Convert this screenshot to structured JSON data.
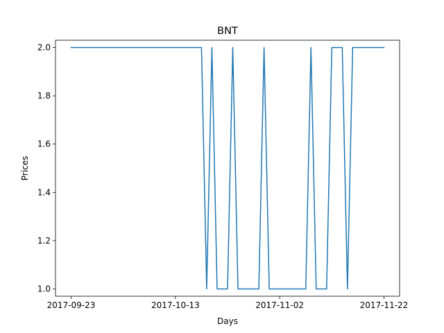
{
  "chart_data": {
    "type": "line",
    "title": "BNT",
    "xlabel": "Days",
    "ylabel": "Prices",
    "x_ticks": [
      "2017-09-23",
      "2017-10-13",
      "2017-11-02",
      "2017-11-22"
    ],
    "y_ticks": [
      "1.0",
      "1.2",
      "1.4",
      "1.6",
      "1.8",
      "2.0"
    ],
    "ylim": [
      0.97,
      2.03
    ],
    "xlim": [
      "2017-09-20",
      "2017-11-25"
    ],
    "grid": false,
    "series": [
      {
        "color": "#1f77b4",
        "x": [
          "2017-09-23",
          "2017-10-18",
          "2017-10-19",
          "2017-10-20",
          "2017-10-21",
          "2017-10-22",
          "2017-10-23",
          "2017-10-24",
          "2017-10-25",
          "2017-10-26",
          "2017-10-27",
          "2017-10-28",
          "2017-10-29",
          "2017-10-30",
          "2017-10-31",
          "2017-11-01",
          "2017-11-02",
          "2017-11-03",
          "2017-11-04",
          "2017-11-05",
          "2017-11-06",
          "2017-11-07",
          "2017-11-08",
          "2017-11-09",
          "2017-11-10",
          "2017-11-11",
          "2017-11-12",
          "2017-11-13",
          "2017-11-14",
          "2017-11-15",
          "2017-11-16",
          "2017-11-17",
          "2017-11-18",
          "2017-11-19",
          "2017-11-20",
          "2017-11-21",
          "2017-11-22"
        ],
        "y": [
          2.0,
          2.0,
          1.0,
          2.0,
          1.0,
          1.0,
          1.0,
          2.0,
          1.0,
          1.0,
          1.0,
          1.0,
          1.0,
          2.0,
          1.0,
          1.0,
          1.0,
          1.0,
          1.0,
          1.0,
          1.0,
          1.0,
          2.0,
          1.0,
          1.0,
          1.0,
          2.0,
          2.0,
          2.0,
          1.0,
          2.0,
          2.0,
          2.0,
          2.0,
          2.0,
          2.0,
          2.0
        ]
      }
    ]
  }
}
